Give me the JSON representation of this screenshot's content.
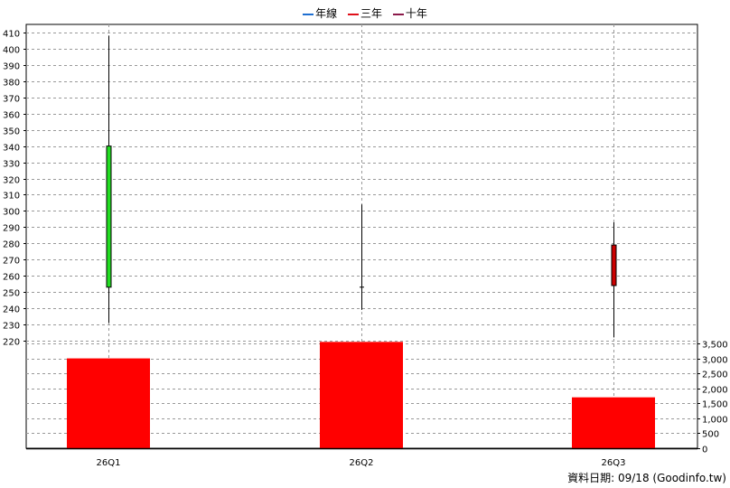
{
  "legend": [
    {
      "label": "年線",
      "color": "#1f6fd1"
    },
    {
      "label": "三年",
      "color": "#e0101a"
    },
    {
      "label": "十年",
      "color": "#8b1a4a"
    }
  ],
  "footer": "資料日期: 09/18  (Goodinfo.tw)",
  "chart_data": {
    "type": "candlestick+bar",
    "categories": [
      "26Q1",
      "26Q2",
      "26Q3"
    ],
    "price": {
      "ylim": [
        220,
        410
      ],
      "ticks": [
        220,
        230,
        240,
        250,
        260,
        270,
        280,
        290,
        300,
        310,
        320,
        330,
        340,
        350,
        360,
        370,
        380,
        390,
        400,
        410
      ],
      "candles": [
        {
          "open": 340,
          "close": 253,
          "high": 408,
          "low": 231,
          "color": "#22dd22"
        },
        {
          "open": 253,
          "close": 253,
          "high": 304,
          "low": 239,
          "color": "#000000"
        },
        {
          "open": 254,
          "close": 279,
          "high": 293,
          "low": 222,
          "color": "#cc0000"
        }
      ]
    },
    "volume": {
      "ylim": [
        0,
        3500
      ],
      "ticks": [
        0,
        500,
        1000,
        1500,
        2000,
        2500,
        3000,
        3500
      ],
      "tick_labels": [
        "0",
        "500",
        "1,000",
        "1,500",
        "2,000",
        "2,500",
        "3,000",
        "3,500"
      ],
      "values": [
        3000,
        3550,
        1700
      ],
      "color": "#ff0000"
    },
    "grid": true
  }
}
